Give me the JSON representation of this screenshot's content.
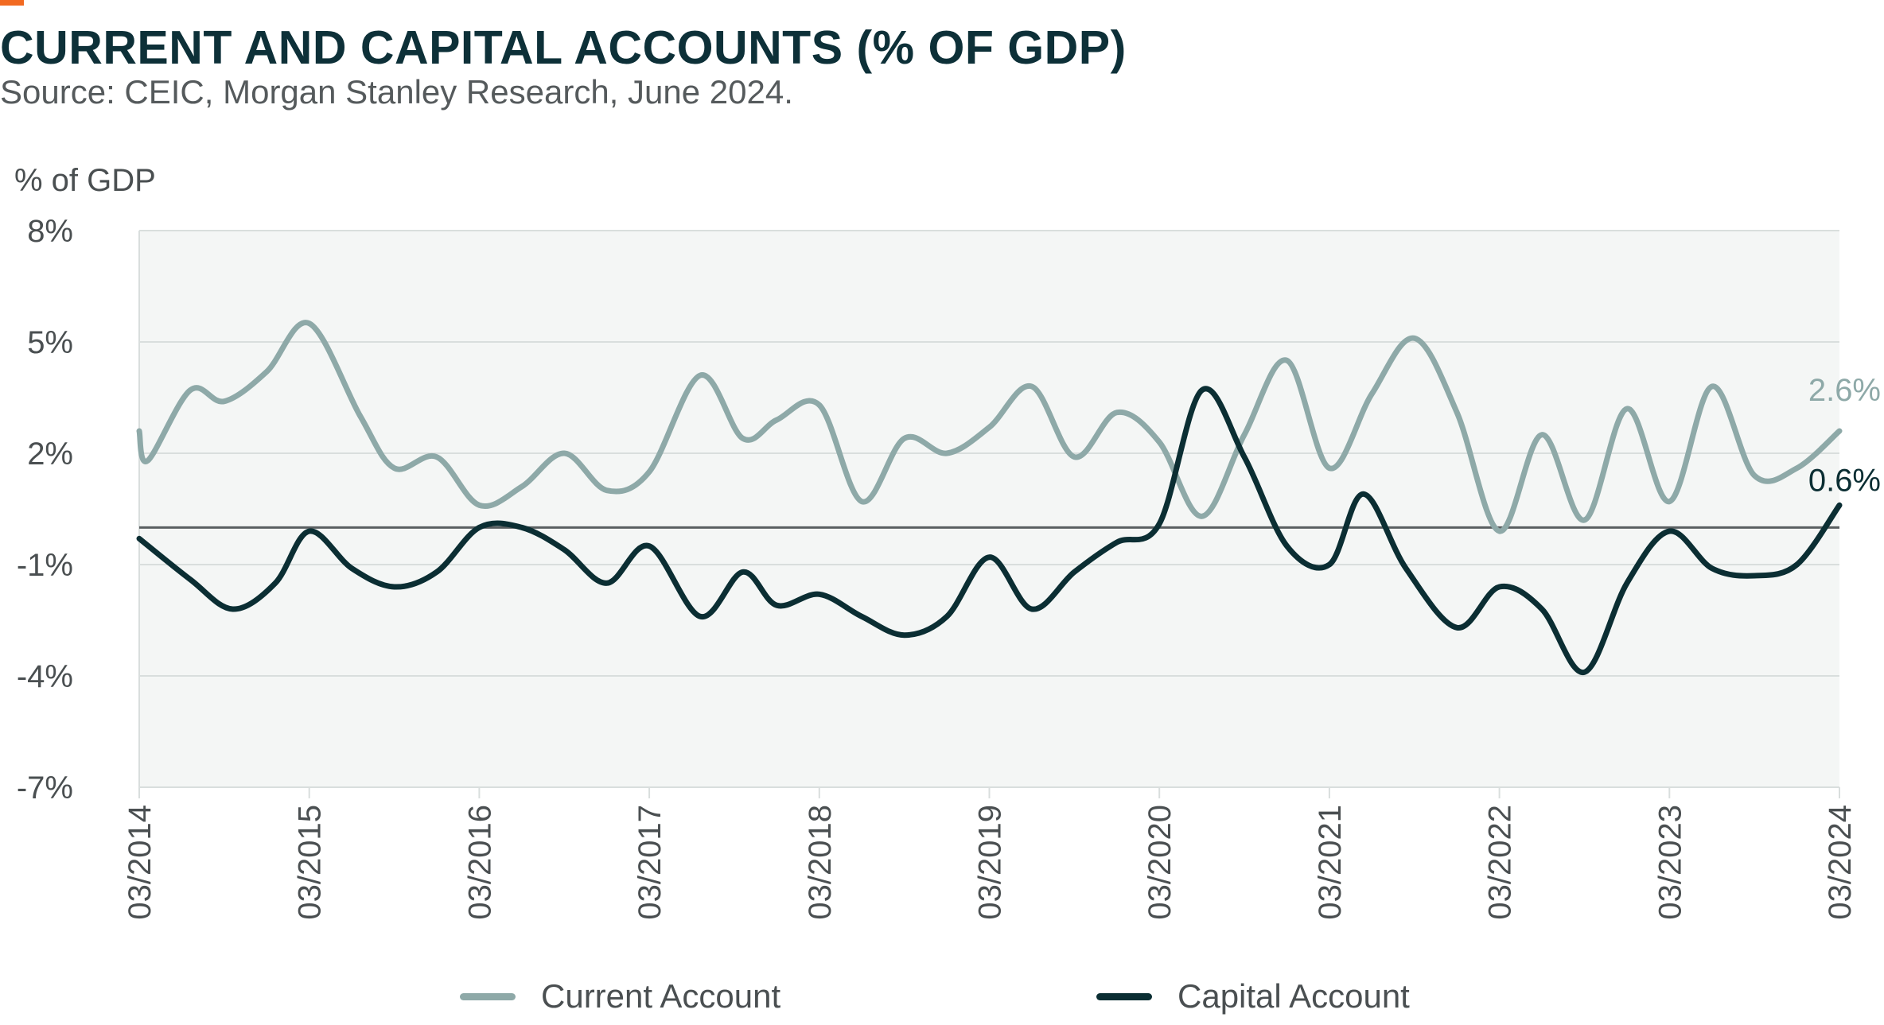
{
  "header": {
    "title": "CURRENT AND CAPITAL ACCOUNTS (% OF GDP)",
    "subtitle": "Source: CEIC, Morgan Stanley Research, June 2024."
  },
  "colors": {
    "accent": "#f26a21",
    "current": "#8ea9a8",
    "capital": "#0b2e33",
    "plot_bg": "#f4f6f5",
    "grid": "#d9dedd",
    "zero_line": "#5a5f61"
  },
  "chart_data": {
    "type": "line",
    "ylabel": "% of GDP",
    "ylim": [
      -7,
      8
    ],
    "yticks": [
      8,
      5,
      2,
      -1,
      -4,
      -7
    ],
    "ytick_labels": [
      "8%",
      "5%",
      "2%",
      "-1%",
      "-4%",
      "-7%"
    ],
    "xlim": [
      2014.0,
      2024.0
    ],
    "xticks": [
      2014,
      2015,
      2016,
      2017,
      2018,
      2019,
      2020,
      2021,
      2022,
      2023,
      2024
    ],
    "xtick_labels": [
      "03/2014",
      "03/2015",
      "03/2016",
      "03/2017",
      "03/2018",
      "03/2019",
      "03/2020",
      "03/2021",
      "03/2022",
      "03/2023",
      "03/2024"
    ],
    "grid": true,
    "legend_position": "bottom",
    "series": [
      {
        "name": "Current Account",
        "color_key": "current",
        "end_label": "2.6%",
        "x": [
          2014.0,
          2014.05,
          2014.3,
          2014.5,
          2014.75,
          2015.0,
          2015.3,
          2015.5,
          2015.75,
          2016.0,
          2016.25,
          2016.5,
          2016.75,
          2017.0,
          2017.3,
          2017.55,
          2017.75,
          2018.0,
          2018.25,
          2018.5,
          2018.75,
          2019.0,
          2019.25,
          2019.5,
          2019.75,
          2020.0,
          2020.25,
          2020.5,
          2020.75,
          2021.0,
          2021.25,
          2021.5,
          2021.75,
          2022.0,
          2022.25,
          2022.5,
          2022.75,
          2023.0,
          2023.25,
          2023.5,
          2023.75,
          2024.0
        ],
        "y": [
          2.6,
          1.8,
          3.7,
          3.4,
          4.2,
          5.5,
          3.0,
          1.6,
          1.9,
          0.6,
          1.1,
          2.0,
          1.0,
          1.5,
          4.1,
          2.4,
          2.9,
          3.3,
          0.7,
          2.4,
          2.0,
          2.7,
          3.8,
          1.9,
          3.1,
          2.3,
          0.3,
          2.5,
          4.5,
          1.6,
          3.6,
          5.1,
          3.1,
          -0.1,
          2.5,
          0.2,
          3.2,
          0.7,
          3.8,
          1.4,
          1.6,
          2.6
        ]
      },
      {
        "name": "Capital Account",
        "color_key": "capital",
        "end_label": "0.6%",
        "x": [
          2014.0,
          2014.3,
          2014.55,
          2014.8,
          2015.0,
          2015.25,
          2015.5,
          2015.75,
          2016.0,
          2016.25,
          2016.5,
          2016.75,
          2017.0,
          2017.3,
          2017.55,
          2017.75,
          2018.0,
          2018.25,
          2018.5,
          2018.75,
          2019.0,
          2019.25,
          2019.5,
          2019.75,
          2020.0,
          2020.25,
          2020.5,
          2020.75,
          2021.0,
          2021.2,
          2021.45,
          2021.75,
          2022.0,
          2022.25,
          2022.5,
          2022.75,
          2023.0,
          2023.25,
          2023.5,
          2023.75,
          2024.0
        ],
        "y": [
          -0.3,
          -1.4,
          -2.2,
          -1.5,
          -0.1,
          -1.1,
          -1.6,
          -1.2,
          0.0,
          0.0,
          -0.6,
          -1.5,
          -0.5,
          -2.4,
          -1.2,
          -2.1,
          -1.8,
          -2.4,
          -2.9,
          -2.4,
          -0.8,
          -2.2,
          -1.2,
          -0.4,
          0.1,
          3.7,
          1.9,
          -0.5,
          -1.0,
          0.9,
          -1.1,
          -2.7,
          -1.6,
          -2.2,
          -3.9,
          -1.5,
          -0.1,
          -1.1,
          -1.3,
          -1.0,
          0.6
        ]
      }
    ]
  }
}
